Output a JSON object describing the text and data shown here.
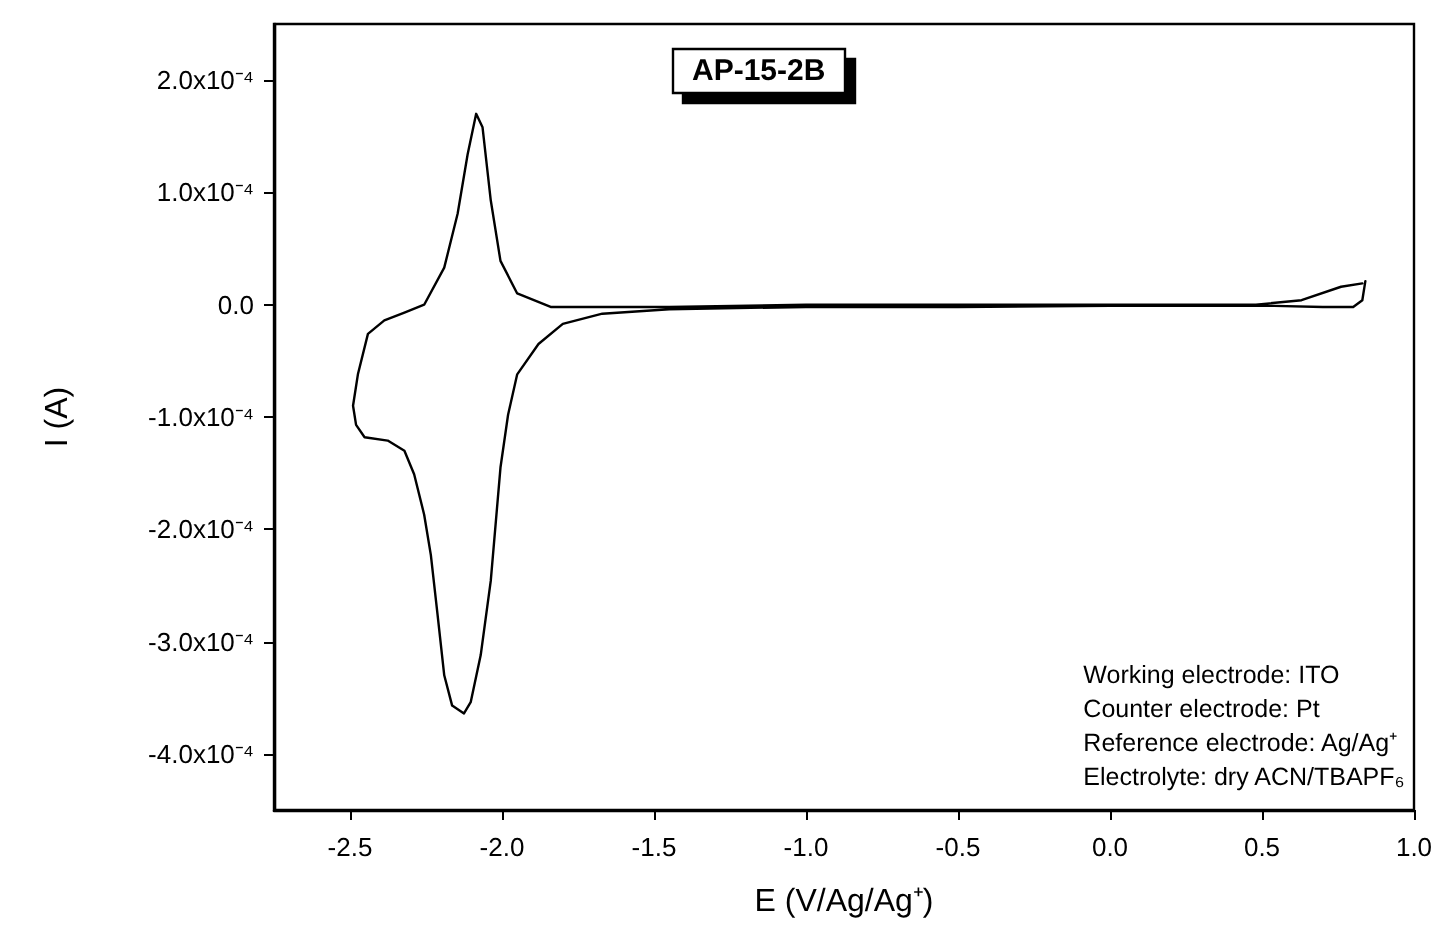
{
  "chart_data": {
    "type": "line",
    "title": "AP-15-2B",
    "xlabel": "E (V/Ag/Ag⁺)",
    "ylabel": "I (A)",
    "annotations": [
      "Working electrode: ITO",
      "Counter electrode: Pt",
      "Reference electrode: Ag/Ag⁺",
      "Electrolyte: dry ACN/TBAPF₆"
    ],
    "xlim": [
      -2.75,
      1.0
    ],
    "xticks": [
      -2.5,
      {
        "value": -2,
        "label": "-2.0"
      },
      -1.5,
      {
        "value": -1,
        "label": "-1.0"
      },
      -0.5,
      {
        "value": 0,
        "label": "0.0"
      },
      0.5,
      {
        "value": 1,
        "label": "1.0"
      }
    ],
    "ylim": [
      -0.00045,
      0.00025
    ],
    "yticks": [
      {
        "value": -0.0004,
        "label": "-4.0x10⁻⁴"
      },
      {
        "value": -0.0003,
        "label": "-3.0x10⁻⁴"
      },
      {
        "value": -0.0002,
        "label": "-2.0x10⁻⁴"
      },
      {
        "value": -0.0001,
        "label": "-1.0x10⁻⁴"
      },
      {
        "value": 0,
        "label": "0.0"
      },
      {
        "value": 0.0001,
        "label": "1.0x10⁻⁴"
      },
      {
        "value": 0.0002,
        "label": "2.0x10⁻⁴"
      }
    ],
    "grid": false,
    "marker": "none",
    "line_style": "solid",
    "series": [
      {
        "color": "#000000",
        "values": [
          2.1e-05,
          4e-06,
          -2e-06,
          -2e-06,
          -1e-06,
          -1e-06,
          -1e-06,
          -2e-06,
          -2e-06,
          -4e-06,
          -8e-06,
          -1.7e-05,
          -3.5e-05,
          -6.2e-05,
          -9.8e-05,
          -0.000145,
          -0.000246,
          -0.000312,
          -0.000354,
          -0.000364,
          -0.000357,
          -0.00033,
          -0.000276,
          -0.000223,
          -0.000187,
          -0.000151,
          -0.00013,
          -0.000121,
          -0.000118,
          -0.000107,
          -9e-05,
          -6.2e-05,
          -2.6e-05,
          -1.4e-05,
          -7e-06,
          0.0,
          3.3e-05,
          8.1e-05,
          0.000134,
          0.00017,
          0.000158,
          9.3e-05,
          3.9e-05,
          1e-05,
          -2e-06,
          -2e-06,
          0.0,
          0.0,
          0.0,
          0.0,
          4e-06,
          1.6e-05,
          1.9e-05
        ],
        "x": [
          0.84,
          0.83,
          0.8,
          0.7,
          0.54,
          0.3,
          0.0,
          -0.5,
          -1.0,
          -1.45,
          -1.67,
          -1.8,
          -1.88,
          -1.95,
          -1.98,
          -2.005,
          -2.037,
          -2.07,
          -2.103,
          -2.125,
          -2.164,
          -2.19,
          -2.212,
          -2.234,
          -2.256,
          -2.289,
          -2.321,
          -2.376,
          -2.452,
          -2.48,
          -2.49,
          -2.474,
          -2.441,
          -2.387,
          -2.321,
          -2.256,
          -2.19,
          -2.146,
          -2.113,
          -2.085,
          -2.064,
          -2.037,
          -2.005,
          -1.95,
          -1.84,
          -1.45,
          -1.0,
          -0.5,
          0.0,
          0.48,
          0.63,
          0.76,
          0.83
        ]
      }
    ]
  }
}
